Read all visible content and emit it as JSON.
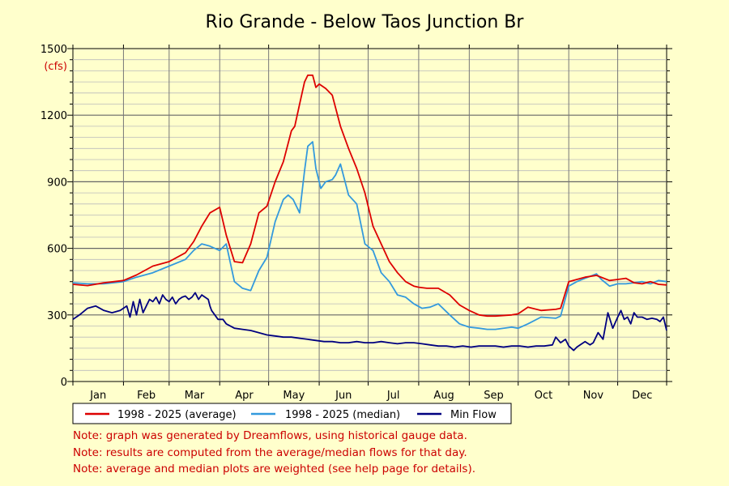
{
  "chart_data": {
    "type": "line",
    "title": "Rio Grande - Below Taos Junction Br",
    "unit_label": "(cfs)",
    "ylim": [
      0,
      1500
    ],
    "yticks": [
      "0",
      "300",
      "600",
      "900",
      "1200",
      "1500"
    ],
    "ytick_values": [
      0,
      300,
      600,
      900,
      1200,
      1500
    ],
    "categories": [
      "Jan",
      "Feb",
      "Mar",
      "Apr",
      "May",
      "Jun",
      "Jul",
      "Aug",
      "Sep",
      "Oct",
      "Nov",
      "Dec"
    ],
    "x_unit": "day of year",
    "xlim": [
      1,
      365
    ],
    "grid": true,
    "legend_placement": "bottom",
    "series": [
      {
        "name": "1998 - 2025 (average)",
        "color": "#dd0000",
        "x": [
          1,
          10,
          20,
          32,
          40,
          50,
          60,
          70,
          75,
          80,
          85,
          91,
          95,
          100,
          105,
          110,
          115,
          120,
          125,
          130,
          135,
          137,
          140,
          143,
          145,
          148,
          150,
          152,
          156,
          160,
          165,
          170,
          175,
          180,
          185,
          190,
          195,
          200,
          205,
          210,
          213,
          218,
          225,
          232,
          238,
          244,
          250,
          255,
          260,
          270,
          274,
          280,
          288,
          297,
          300,
          305,
          310,
          315,
          322,
          330,
          335,
          340,
          345,
          350,
          355,
          360,
          365
        ],
        "values": [
          438,
          432,
          445,
          455,
          480,
          520,
          540,
          580,
          630,
          700,
          760,
          785,
          660,
          540,
          535,
          620,
          760,
          790,
          900,
          990,
          1130,
          1150,
          1250,
          1350,
          1380,
          1380,
          1325,
          1340,
          1320,
          1290,
          1150,
          1050,
          960,
          850,
          700,
          620,
          540,
          490,
          450,
          430,
          425,
          420,
          420,
          390,
          345,
          320,
          300,
          295,
          295,
          300,
          305,
          335,
          320,
          325,
          330,
          450,
          460,
          470,
          478,
          455,
          460,
          465,
          445,
          440,
          450,
          438,
          435
        ]
      },
      {
        "name": "1998 - 2025 (median)",
        "color": "#3399dd",
        "x": [
          1,
          10,
          20,
          32,
          40,
          50,
          60,
          70,
          75,
          80,
          85,
          91,
          95,
          100,
          105,
          110,
          115,
          120,
          125,
          130,
          133,
          136,
          140,
          143,
          145,
          148,
          150,
          153,
          156,
          160,
          162,
          165,
          170,
          175,
          180,
          185,
          190,
          195,
          200,
          205,
          210,
          215,
          220,
          225,
          232,
          238,
          244,
          250,
          255,
          260,
          270,
          274,
          280,
          288,
          297,
          300,
          305,
          310,
          315,
          322,
          325,
          330,
          335,
          340,
          345,
          350,
          355,
          360,
          365
        ],
        "values": [
          445,
          440,
          440,
          450,
          470,
          490,
          520,
          550,
          590,
          620,
          610,
          590,
          620,
          450,
          420,
          410,
          500,
          560,
          720,
          820,
          840,
          820,
          760,
          950,
          1060,
          1080,
          960,
          870,
          900,
          910,
          930,
          980,
          840,
          800,
          620,
          590,
          490,
          450,
          390,
          380,
          350,
          330,
          335,
          350,
          300,
          260,
          245,
          240,
          235,
          235,
          245,
          240,
          260,
          290,
          285,
          295,
          430,
          450,
          465,
          485,
          460,
          430,
          440,
          440,
          445,
          450,
          440,
          455,
          450
        ]
      },
      {
        "name": "Min Flow",
        "color": "#000080",
        "x": [
          1,
          5,
          10,
          15,
          20,
          25,
          30,
          34,
          36,
          38,
          40,
          42,
          44,
          46,
          48,
          50,
          52,
          54,
          56,
          58,
          60,
          62,
          64,
          66,
          68,
          70,
          72,
          74,
          76,
          78,
          80,
          82,
          84,
          85,
          86,
          88,
          90,
          93,
          95,
          100,
          105,
          110,
          115,
          120,
          125,
          130,
          135,
          140,
          145,
          150,
          155,
          160,
          165,
          170,
          175,
          180,
          185,
          190,
          195,
          200,
          205,
          210,
          215,
          220,
          225,
          230,
          235,
          240,
          245,
          250,
          255,
          260,
          265,
          270,
          275,
          280,
          285,
          290,
          295,
          297,
          300,
          303,
          305,
          308,
          310,
          313,
          315,
          318,
          320,
          323,
          326,
          329,
          332,
          335,
          337,
          339,
          341,
          343,
          345,
          347,
          350,
          353,
          356,
          359,
          361,
          363,
          365
        ],
        "values": [
          280,
          300,
          330,
          340,
          320,
          310,
          320,
          340,
          290,
          360,
          300,
          370,
          310,
          340,
          370,
          360,
          380,
          350,
          390,
          370,
          360,
          380,
          350,
          370,
          380,
          385,
          370,
          380,
          400,
          370,
          390,
          380,
          370,
          340,
          320,
          300,
          280,
          280,
          260,
          240,
          235,
          230,
          220,
          210,
          205,
          200,
          200,
          195,
          190,
          185,
          180,
          180,
          175,
          175,
          180,
          175,
          175,
          180,
          175,
          170,
          175,
          175,
          170,
          165,
          160,
          160,
          155,
          160,
          155,
          160,
          160,
          160,
          155,
          160,
          160,
          155,
          160,
          160,
          165,
          200,
          175,
          190,
          160,
          140,
          155,
          170,
          180,
          165,
          175,
          220,
          190,
          310,
          240,
          290,
          320,
          280,
          290,
          260,
          310,
          290,
          290,
          280,
          285,
          280,
          270,
          290,
          230
        ]
      }
    ]
  },
  "notes": [
    "Note: graph was generated by Dreamflows, using historical gauge data.",
    "Note: results are computed from the average/median flows for that day.",
    "Note: average and median plots are weighted (see help page for details)."
  ]
}
